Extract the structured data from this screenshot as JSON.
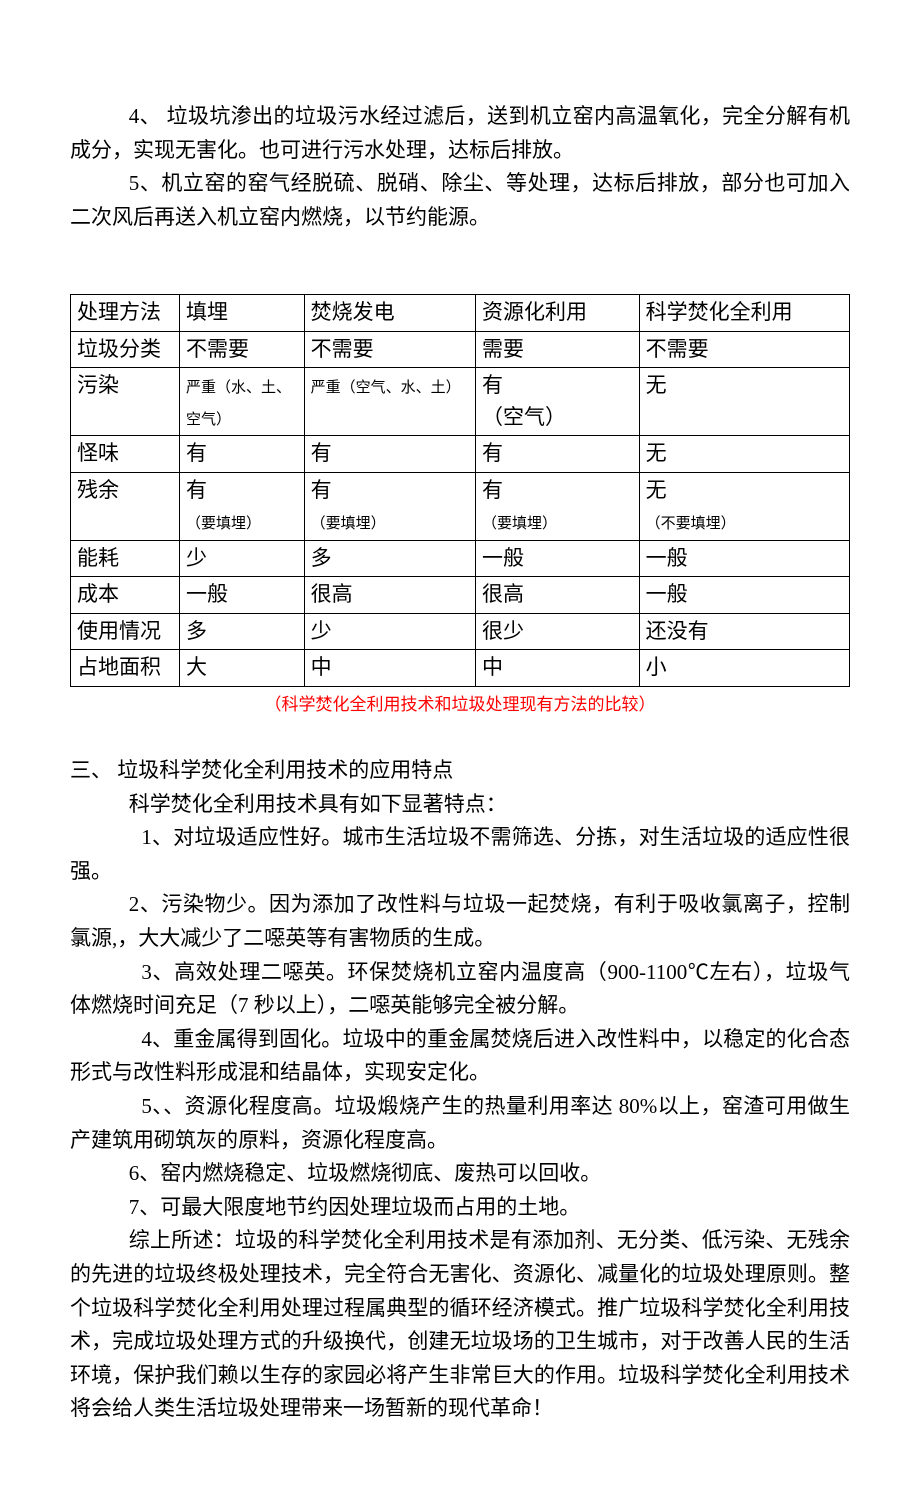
{
  "intro": {
    "p4": "4、 垃圾坑渗出的垃圾污水经过滤后，送到机立窑内高温氧化，完全分解有机成分，实现无害化。也可进行污水处理，达标后排放。",
    "p5": "5、机立窑的窑气经脱硫、脱硝、除尘、等处理，达标后排放，部分也可加入二次风后再送入机立窑内燃烧，以节约能源。"
  },
  "table": {
    "columns": [
      "处理方法",
      "填埋",
      "焚烧发电",
      "资源化利用",
      "科学焚化全利用"
    ],
    "rows": [
      {
        "label": "垃圾分类",
        "c1": "不需要",
        "c2": "不需要",
        "c3": "需要",
        "c4": "不需要"
      },
      {
        "label": "污染",
        "c1": "严重（水、土、空气）",
        "c2": "严重（空气、水、土）",
        "c3": "有（空气）",
        "c4": "无",
        "c1_small": true,
        "c2_small": true,
        "c3_line1": "有",
        "c3_line2": "（空气）"
      },
      {
        "label": "怪味",
        "c1": "有",
        "c2": "有",
        "c3": " 有",
        "c4": "无"
      },
      {
        "label": "残余",
        "c1": "有（要填埋）",
        "c2": "有（要填埋）",
        "c3": "有（要填埋）",
        "c4": "无（不要填埋）",
        "note_row": true
      },
      {
        "label": "能耗",
        "c1": "少",
        "c2": "多",
        "c3": "一般",
        "c4": "一般"
      },
      {
        "label": "成本",
        "c1": "一般",
        "c2": "很高",
        "c3": "很高",
        "c4": "一般"
      },
      {
        "label": "使用情况",
        "c1": "多",
        "c2": "少",
        "c3": "很少",
        "c4": "还没有"
      },
      {
        "label": "占地面积",
        "c1": "大",
        "c2": "中",
        "c3": "中",
        "c4": "小"
      }
    ],
    "caption": "（科学焚化全利用技术和垃圾处理现有方法的比较）"
  },
  "section3": {
    "heading": "三、  垃圾科学焚化全利用技术的应用特点",
    "intro": "科学焚化全利用技术具有如下显著特点：",
    "p1": "1、对垃圾适应性好。城市生活垃圾不需筛选、分拣，对生活垃圾的适应性很强。",
    "p2": "2、污染物少。因为添加了改性料与垃圾一起焚烧，有利于吸收氯离子，控制氯源,，大大减少了二噁英等有害物质的生成。",
    "p3": "3、高效处理二噁英。环保焚烧机立窑内温度高（900-1100℃左右），垃圾气体燃烧时间充足（7 秒以上），二噁英能够完全被分解。",
    "p4": "4、重金属得到固化。垃圾中的重金属焚烧后进入改性料中，以稳定的化合态形式与改性料形成混和结晶体，实现安定化。",
    "p5": "5、、资源化程度高。垃圾煅烧产生的热量利用率达 80%以上，窑渣可用做生产建筑用砌筑灰的原料，资源化程度高。",
    "p6": "6、窑内燃烧稳定、垃圾燃烧彻底、废热可以回收。",
    "p7": "7、可最大限度地节约因处理垃圾而占用的土地。",
    "summary": "综上所述：垃圾的科学焚化全利用技术是有添加剂、无分类、低污染、无残余的先进的垃圾终极处理技术，完全符合无害化、资源化、减量化的垃圾处理原则。整个垃圾科学焚化全利用处理过程属典型的循环经济模式。推广垃圾科学焚化全利用技术，完成垃圾处理方式的升级换代，创建无垃圾场的卫生城市，对于改善人民的生活环境，保护我们赖以生存的家园必将产生非常巨大的作用。垃圾科学焚化全利用技术将会给人类生活垃圾处理带来一场暂新的现代革命！"
  }
}
